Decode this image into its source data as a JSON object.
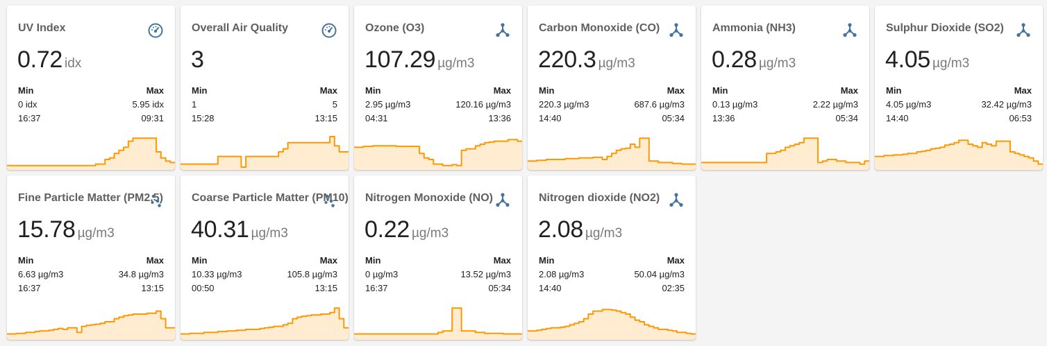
{
  "accent_color": "#ff9800",
  "icon_color": "#44739e",
  "min_label": "Min",
  "max_label": "Max",
  "cards": [
    {
      "title": "UV Index",
      "icon": "gauge-icon",
      "value": "0.72",
      "unit": "idx",
      "min_value": "0 idx",
      "min_time": "16:37",
      "max_value": "5.95 idx",
      "max_time": "09:31",
      "history": [
        0.05,
        0.05,
        0.05,
        0.05,
        0.05,
        0.05,
        0.05,
        0.05,
        0.05,
        0.05,
        0.05,
        0.05,
        0.05,
        0.05,
        0.05,
        0.05,
        0.05,
        0.05,
        0.05,
        0.1,
        0.1,
        0.25,
        0.3,
        0.45,
        0.55,
        0.65,
        0.85,
        0.95,
        0.95,
        0.95,
        0.95,
        0.95,
        0.5,
        0.3,
        0.2,
        0.15
      ]
    },
    {
      "title": "Overall Air Quality",
      "icon": "gauge-icon",
      "value": "3",
      "unit": "",
      "min_value": "1",
      "min_time": "15:28",
      "max_value": "5",
      "max_time": "13:15",
      "history": [
        0.1,
        0.1,
        0.1,
        0.1,
        0.1,
        0.1,
        0.1,
        0.1,
        0.35,
        0.35,
        0.35,
        0.35,
        0.35,
        0.0,
        0.35,
        0.35,
        0.35,
        0.35,
        0.35,
        0.35,
        0.35,
        0.5,
        0.6,
        0.8,
        0.8,
        0.8,
        0.8,
        0.8,
        0.8,
        0.8,
        0.8,
        0.8,
        1.0,
        0.7,
        0.5,
        0.5
      ]
    },
    {
      "title": "Ozone (O3)",
      "icon": "molecule-icon",
      "value": "107.29",
      "unit": "µg/m3",
      "min_value": "2.95 µg/m3",
      "min_time": "04:31",
      "max_value": "120.16 µg/m3",
      "max_time": "13:36",
      "history": [
        0.65,
        0.65,
        0.68,
        0.68,
        0.7,
        0.7,
        0.7,
        0.7,
        0.7,
        0.68,
        0.68,
        0.68,
        0.68,
        0.68,
        0.45,
        0.3,
        0.25,
        0.1,
        0.1,
        0.05,
        0.05,
        0.08,
        0.05,
        0.55,
        0.6,
        0.6,
        0.7,
        0.75,
        0.8,
        0.82,
        0.85,
        0.85,
        0.85,
        0.9,
        0.9,
        0.85
      ]
    },
    {
      "title": "Carbon Monoxide (CO)",
      "icon": "molecule-icon",
      "value": "220.3",
      "unit": "µg/m3",
      "min_value": "220.3 µg/m3",
      "min_time": "14:40",
      "max_value": "687.6 µg/m3",
      "max_time": "05:34",
      "history": [
        0.2,
        0.2,
        0.22,
        0.22,
        0.25,
        0.25,
        0.25,
        0.25,
        0.28,
        0.28,
        0.28,
        0.3,
        0.3,
        0.3,
        0.32,
        0.32,
        0.25,
        0.35,
        0.45,
        0.55,
        0.6,
        0.62,
        0.75,
        0.65,
        0.95,
        0.95,
        0.2,
        0.2,
        0.15,
        0.15,
        0.15,
        0.12,
        0.12,
        0.1,
        0.1,
        0.1
      ]
    },
    {
      "title": "Ammonia (NH3)",
      "icon": "molecule-icon",
      "value": "0.28",
      "unit": "µg/m3",
      "min_value": "0.13 µg/m3",
      "min_time": "13:36",
      "max_value": "2.22 µg/m3",
      "max_time": "05:34",
      "history": [
        0.15,
        0.15,
        0.15,
        0.15,
        0.15,
        0.15,
        0.15,
        0.15,
        0.15,
        0.15,
        0.15,
        0.15,
        0.15,
        0.15,
        0.45,
        0.45,
        0.5,
        0.55,
        0.65,
        0.7,
        0.75,
        0.8,
        0.95,
        0.95,
        0.95,
        0.15,
        0.2,
        0.25,
        0.25,
        0.2,
        0.2,
        0.15,
        0.15,
        0.15,
        0.1,
        0.2
      ]
    },
    {
      "title": "Sulphur Dioxide (SO2)",
      "icon": "molecule-icon",
      "value": "4.05",
      "unit": "µg/m3",
      "min_value": "4.05 µg/m3",
      "min_time": "14:40",
      "max_value": "32.42 µg/m3",
      "max_time": "06:53",
      "history": [
        0.35,
        0.35,
        0.38,
        0.38,
        0.4,
        0.4,
        0.42,
        0.45,
        0.45,
        0.5,
        0.52,
        0.55,
        0.6,
        0.62,
        0.65,
        0.72,
        0.75,
        0.8,
        0.88,
        0.88,
        0.75,
        0.7,
        0.65,
        0.8,
        0.75,
        0.7,
        0.85,
        0.85,
        0.85,
        0.5,
        0.45,
        0.4,
        0.35,
        0.3,
        0.2,
        0.1
      ]
    },
    {
      "title": "Fine Particle Matter (PM2.5)",
      "icon": "particles-icon",
      "value": "15.78",
      "unit": "µg/m3",
      "min_value": "6.63 µg/m3",
      "min_time": "16:37",
      "max_value": "34.8 µg/m3",
      "max_time": "13:15",
      "history": [
        0.1,
        0.1,
        0.12,
        0.12,
        0.15,
        0.15,
        0.18,
        0.2,
        0.2,
        0.22,
        0.25,
        0.28,
        0.25,
        0.3,
        0.3,
        0.15,
        0.35,
        0.38,
        0.4,
        0.42,
        0.45,
        0.5,
        0.5,
        0.6,
        0.65,
        0.7,
        0.72,
        0.75,
        0.75,
        0.75,
        0.78,
        0.78,
        0.85,
        0.6,
        0.3,
        0.3
      ]
    },
    {
      "title": "Coarse Particle Matter (PM10)",
      "icon": "particles-icon",
      "value": "40.31",
      "unit": "µg/m3",
      "min_value": "10.33 µg/m3",
      "min_time": "00:50",
      "max_value": "105.8 µg/m3",
      "max_time": "13:15",
      "history": [
        0.1,
        0.1,
        0.12,
        0.12,
        0.12,
        0.15,
        0.15,
        0.15,
        0.18,
        0.18,
        0.2,
        0.2,
        0.22,
        0.22,
        0.25,
        0.25,
        0.25,
        0.28,
        0.3,
        0.32,
        0.35,
        0.35,
        0.4,
        0.45,
        0.6,
        0.65,
        0.68,
        0.7,
        0.72,
        0.72,
        0.75,
        0.75,
        0.8,
        0.95,
        0.6,
        0.3
      ]
    },
    {
      "title": "Nitrogen Monoxide (NO)",
      "icon": "molecule-icon",
      "value": "0.22",
      "unit": "µg/m3",
      "min_value": "0 µg/m3",
      "min_time": "16:37",
      "max_value": "13.52 µg/m3",
      "max_time": "05:34",
      "history": [
        0.1,
        0.1,
        0.1,
        0.1,
        0.1,
        0.1,
        0.1,
        0.1,
        0.1,
        0.1,
        0.1,
        0.1,
        0.1,
        0.1,
        0.1,
        0.1,
        0.1,
        0.1,
        0.15,
        0.2,
        0.2,
        0.95,
        0.95,
        0.2,
        0.2,
        0.2,
        0.15,
        0.15,
        0.12,
        0.12,
        0.12,
        0.12,
        0.1,
        0.1,
        0.1,
        0.1
      ]
    },
    {
      "title": "Nitrogen dioxide (NO2)",
      "icon": "molecule-icon",
      "value": "2.08",
      "unit": "µg/m3",
      "min_value": "2.08 µg/m3",
      "min_time": "14:40",
      "max_value": "50.04 µg/m3",
      "max_time": "02:35",
      "history": [
        0.2,
        0.2,
        0.22,
        0.25,
        0.28,
        0.3,
        0.3,
        0.32,
        0.35,
        0.4,
        0.45,
        0.5,
        0.6,
        0.75,
        0.85,
        0.85,
        0.9,
        0.9,
        0.88,
        0.85,
        0.8,
        0.75,
        0.65,
        0.55,
        0.5,
        0.4,
        0.35,
        0.3,
        0.25,
        0.25,
        0.22,
        0.2,
        0.15,
        0.15,
        0.12,
        0.1
      ]
    }
  ]
}
